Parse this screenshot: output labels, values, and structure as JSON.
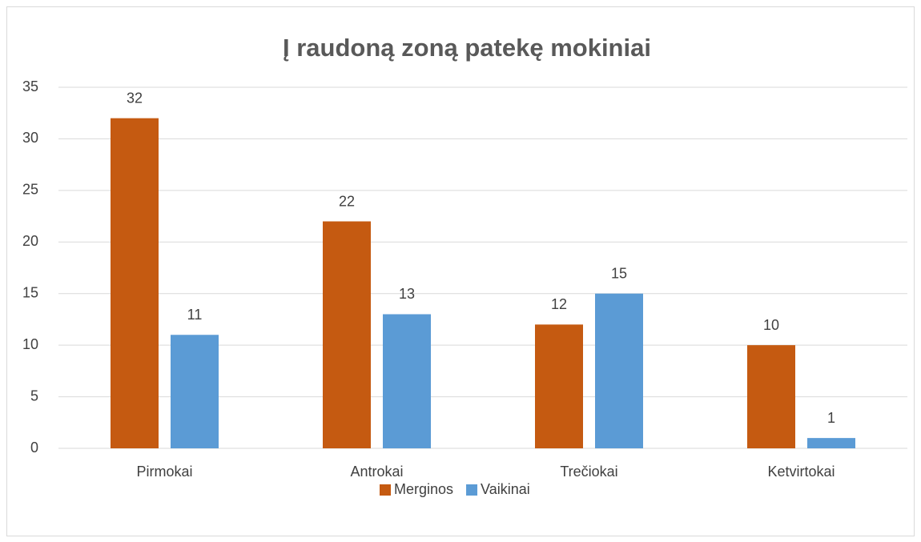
{
  "chart_data": {
    "type": "bar",
    "title": "Į raudoną zoną patekę mokiniai",
    "categories": [
      "Pirmokai",
      "Antrokai",
      "Trečiokai",
      "Ketvirtokai"
    ],
    "series": [
      {
        "name": "Merginos",
        "color": "#c55a11",
        "values": [
          32,
          22,
          12,
          10
        ]
      },
      {
        "name": "Vaikinai",
        "color": "#5b9bd5",
        "values": [
          11,
          13,
          15,
          1
        ]
      }
    ],
    "ylim": [
      0,
      35
    ],
    "yticks": [
      0,
      5,
      10,
      15,
      20,
      25,
      30,
      35
    ],
    "grid": true,
    "legend": "bottom"
  }
}
